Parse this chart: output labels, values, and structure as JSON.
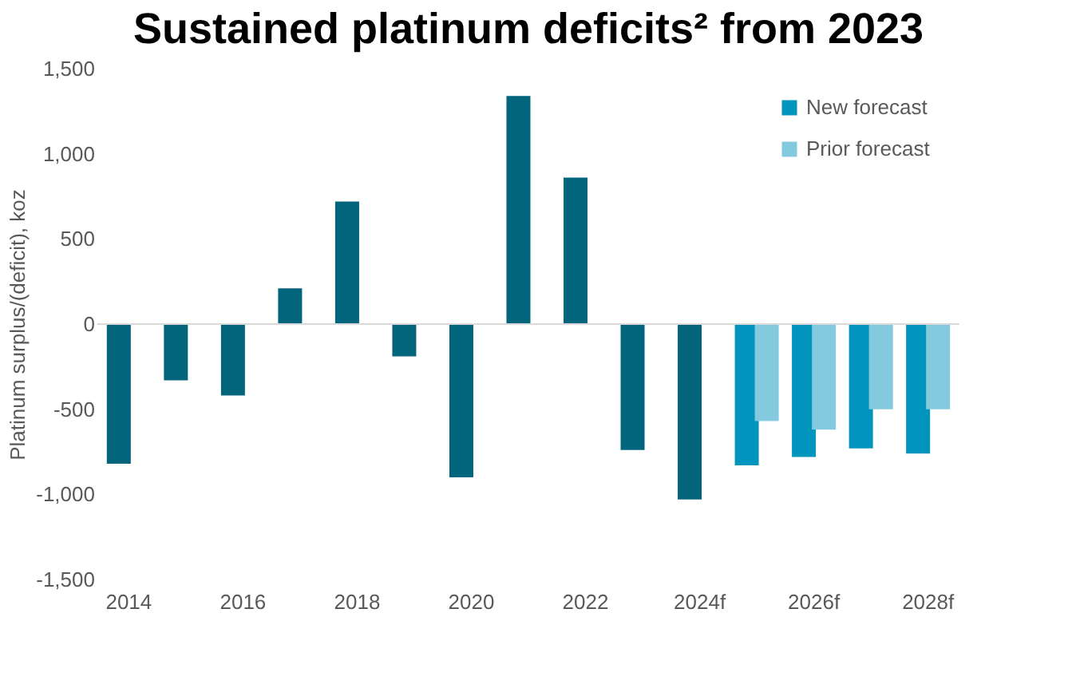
{
  "chart_data": {
    "type": "bar",
    "title": "Sustained platinum deficits² from 2023",
    "ylabel": "Platinum surplus/(deficit), koz",
    "categories": [
      "2014",
      null,
      "2016",
      null,
      "2018",
      null,
      "2020",
      null,
      "2022",
      null,
      "2024f",
      null,
      "2026f",
      null,
      "2028f"
    ],
    "series": [
      {
        "color": "#02657c",
        "values": [
          -820,
          -330,
          -420,
          210,
          720,
          -190,
          -900,
          1340,
          860,
          -740,
          -1030,
          null,
          null,
          null,
          null
        ]
      },
      {
        "name": "New forecast",
        "color": "#0194bd",
        "values": [
          null,
          null,
          null,
          null,
          null,
          null,
          null,
          null,
          null,
          null,
          null,
          -830,
          -780,
          -730,
          -760
        ]
      },
      {
        "name": "Prior forecast",
        "color": "#83cadf",
        "values": [
          null,
          null,
          null,
          null,
          null,
          null,
          null,
          null,
          null,
          null,
          null,
          -570,
          -620,
          -500,
          -500
        ]
      }
    ],
    "ylim": [
      -1500,
      1500
    ],
    "yticks": [
      {
        "value": -1500,
        "label": "-1,500"
      },
      {
        "value": -1000,
        "label": "-1,000"
      },
      {
        "value": -500,
        "label": "-500"
      },
      0,
      500,
      {
        "value": 1000,
        "label": "1,000"
      },
      {
        "value": 1500,
        "label": "1,500"
      }
    ],
    "ref_lines": [
      {
        "axis": "y",
        "value": 0,
        "color": "#d9d9d9"
      }
    ],
    "grid": false,
    "legend": "top right"
  }
}
